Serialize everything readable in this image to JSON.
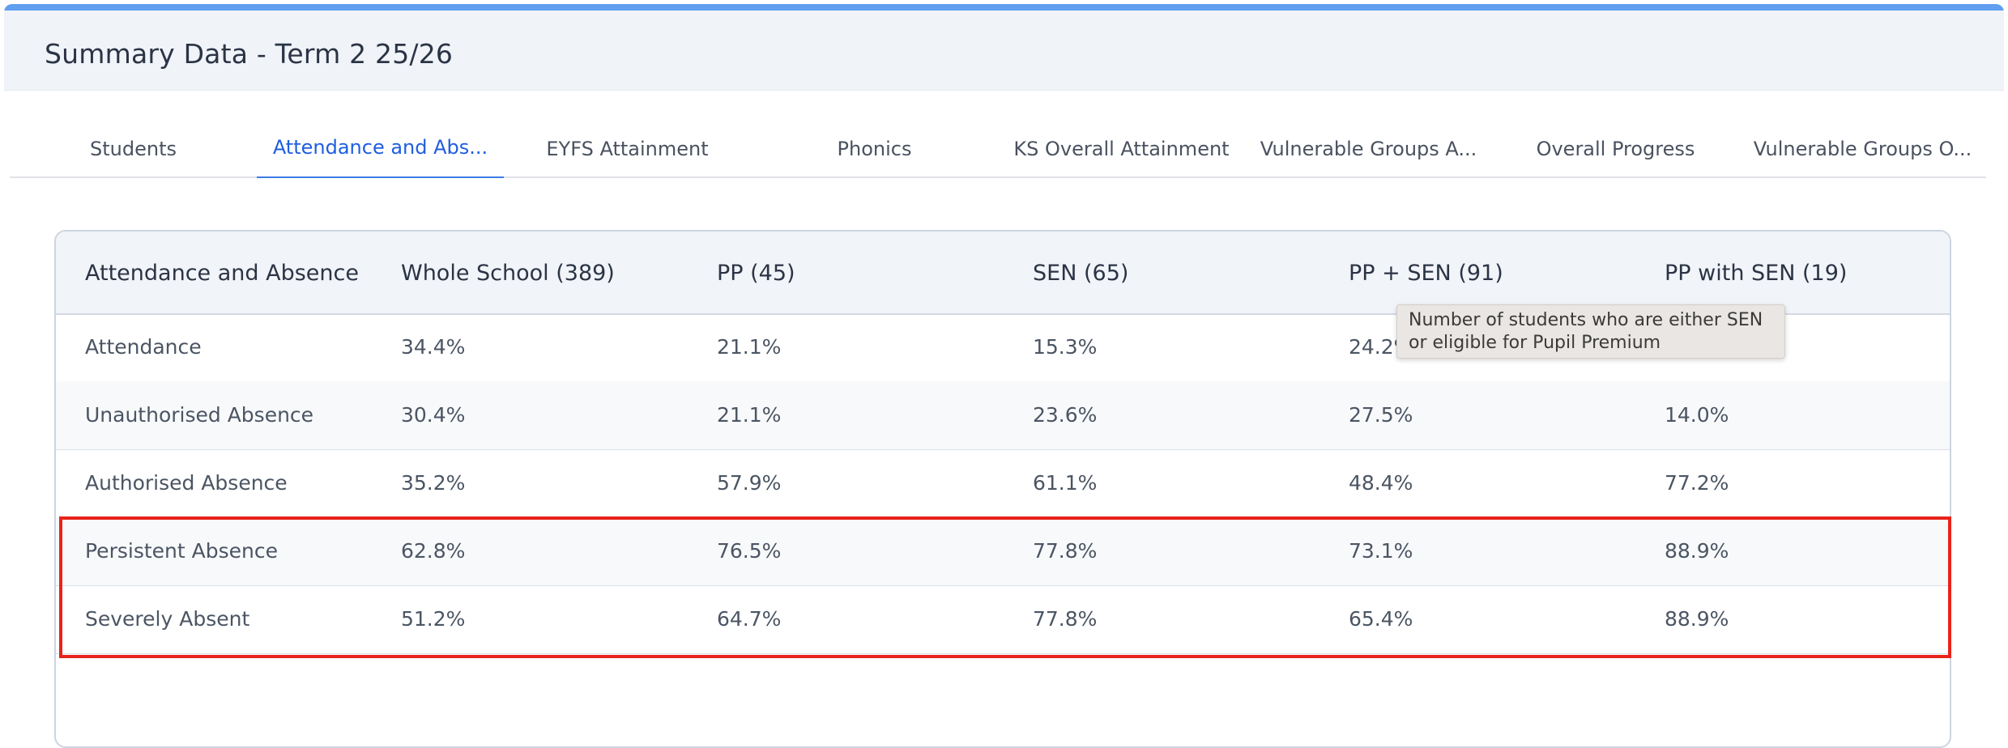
{
  "header": {
    "title": "Summary Data - Term 2 25/26"
  },
  "tabs": [
    {
      "label": "Students"
    },
    {
      "label": "Attendance and Abs..."
    },
    {
      "label": "EYFS Attainment"
    },
    {
      "label": "Phonics"
    },
    {
      "label": "KS Overall Attainment"
    },
    {
      "label": "Vulnerable Groups A..."
    },
    {
      "label": "Overall Progress"
    },
    {
      "label": "Vulnerable Groups O..."
    }
  ],
  "active_tab": "Attendance and Abs...",
  "table": {
    "headers": [
      "Attendance and Absence",
      "Whole School (389)",
      "PP (45)",
      "SEN (65)",
      "PP + SEN (91)",
      "PP with SEN (19)"
    ],
    "rows": [
      [
        "Attendance",
        "34.4%",
        "21.1%",
        "15.3%",
        "24.2%",
        ""
      ],
      [
        "Unauthorised Absence",
        "30.4%",
        "21.1%",
        "23.6%",
        "27.5%",
        "14.0%"
      ],
      [
        "Authorised Absence",
        "35.2%",
        "57.9%",
        "61.1%",
        "48.4%",
        "77.2%"
      ],
      [
        "Persistent Absence",
        "62.8%",
        "76.5%",
        "77.8%",
        "73.1%",
        "88.9%"
      ],
      [
        "Severely Absent",
        "51.2%",
        "64.7%",
        "77.8%",
        "65.4%",
        "88.9%"
      ]
    ]
  },
  "tooltip": {
    "text": "Number of students who are either SEN or eligible for Pupil Premium"
  },
  "colors": {
    "accent": "#1f5ee0",
    "top_border": "#5f9ef0",
    "highlight": "#e8231b"
  }
}
